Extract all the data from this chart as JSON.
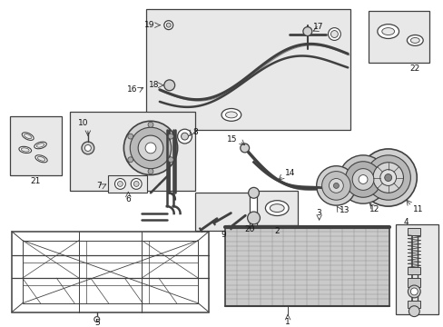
{
  "bg_color": "#ffffff",
  "line_color": "#404040",
  "text_color": "#111111",
  "box_fill": "#e8e8e8",
  "grid_fill": "#c8c8c8",
  "fs": 6.5
}
